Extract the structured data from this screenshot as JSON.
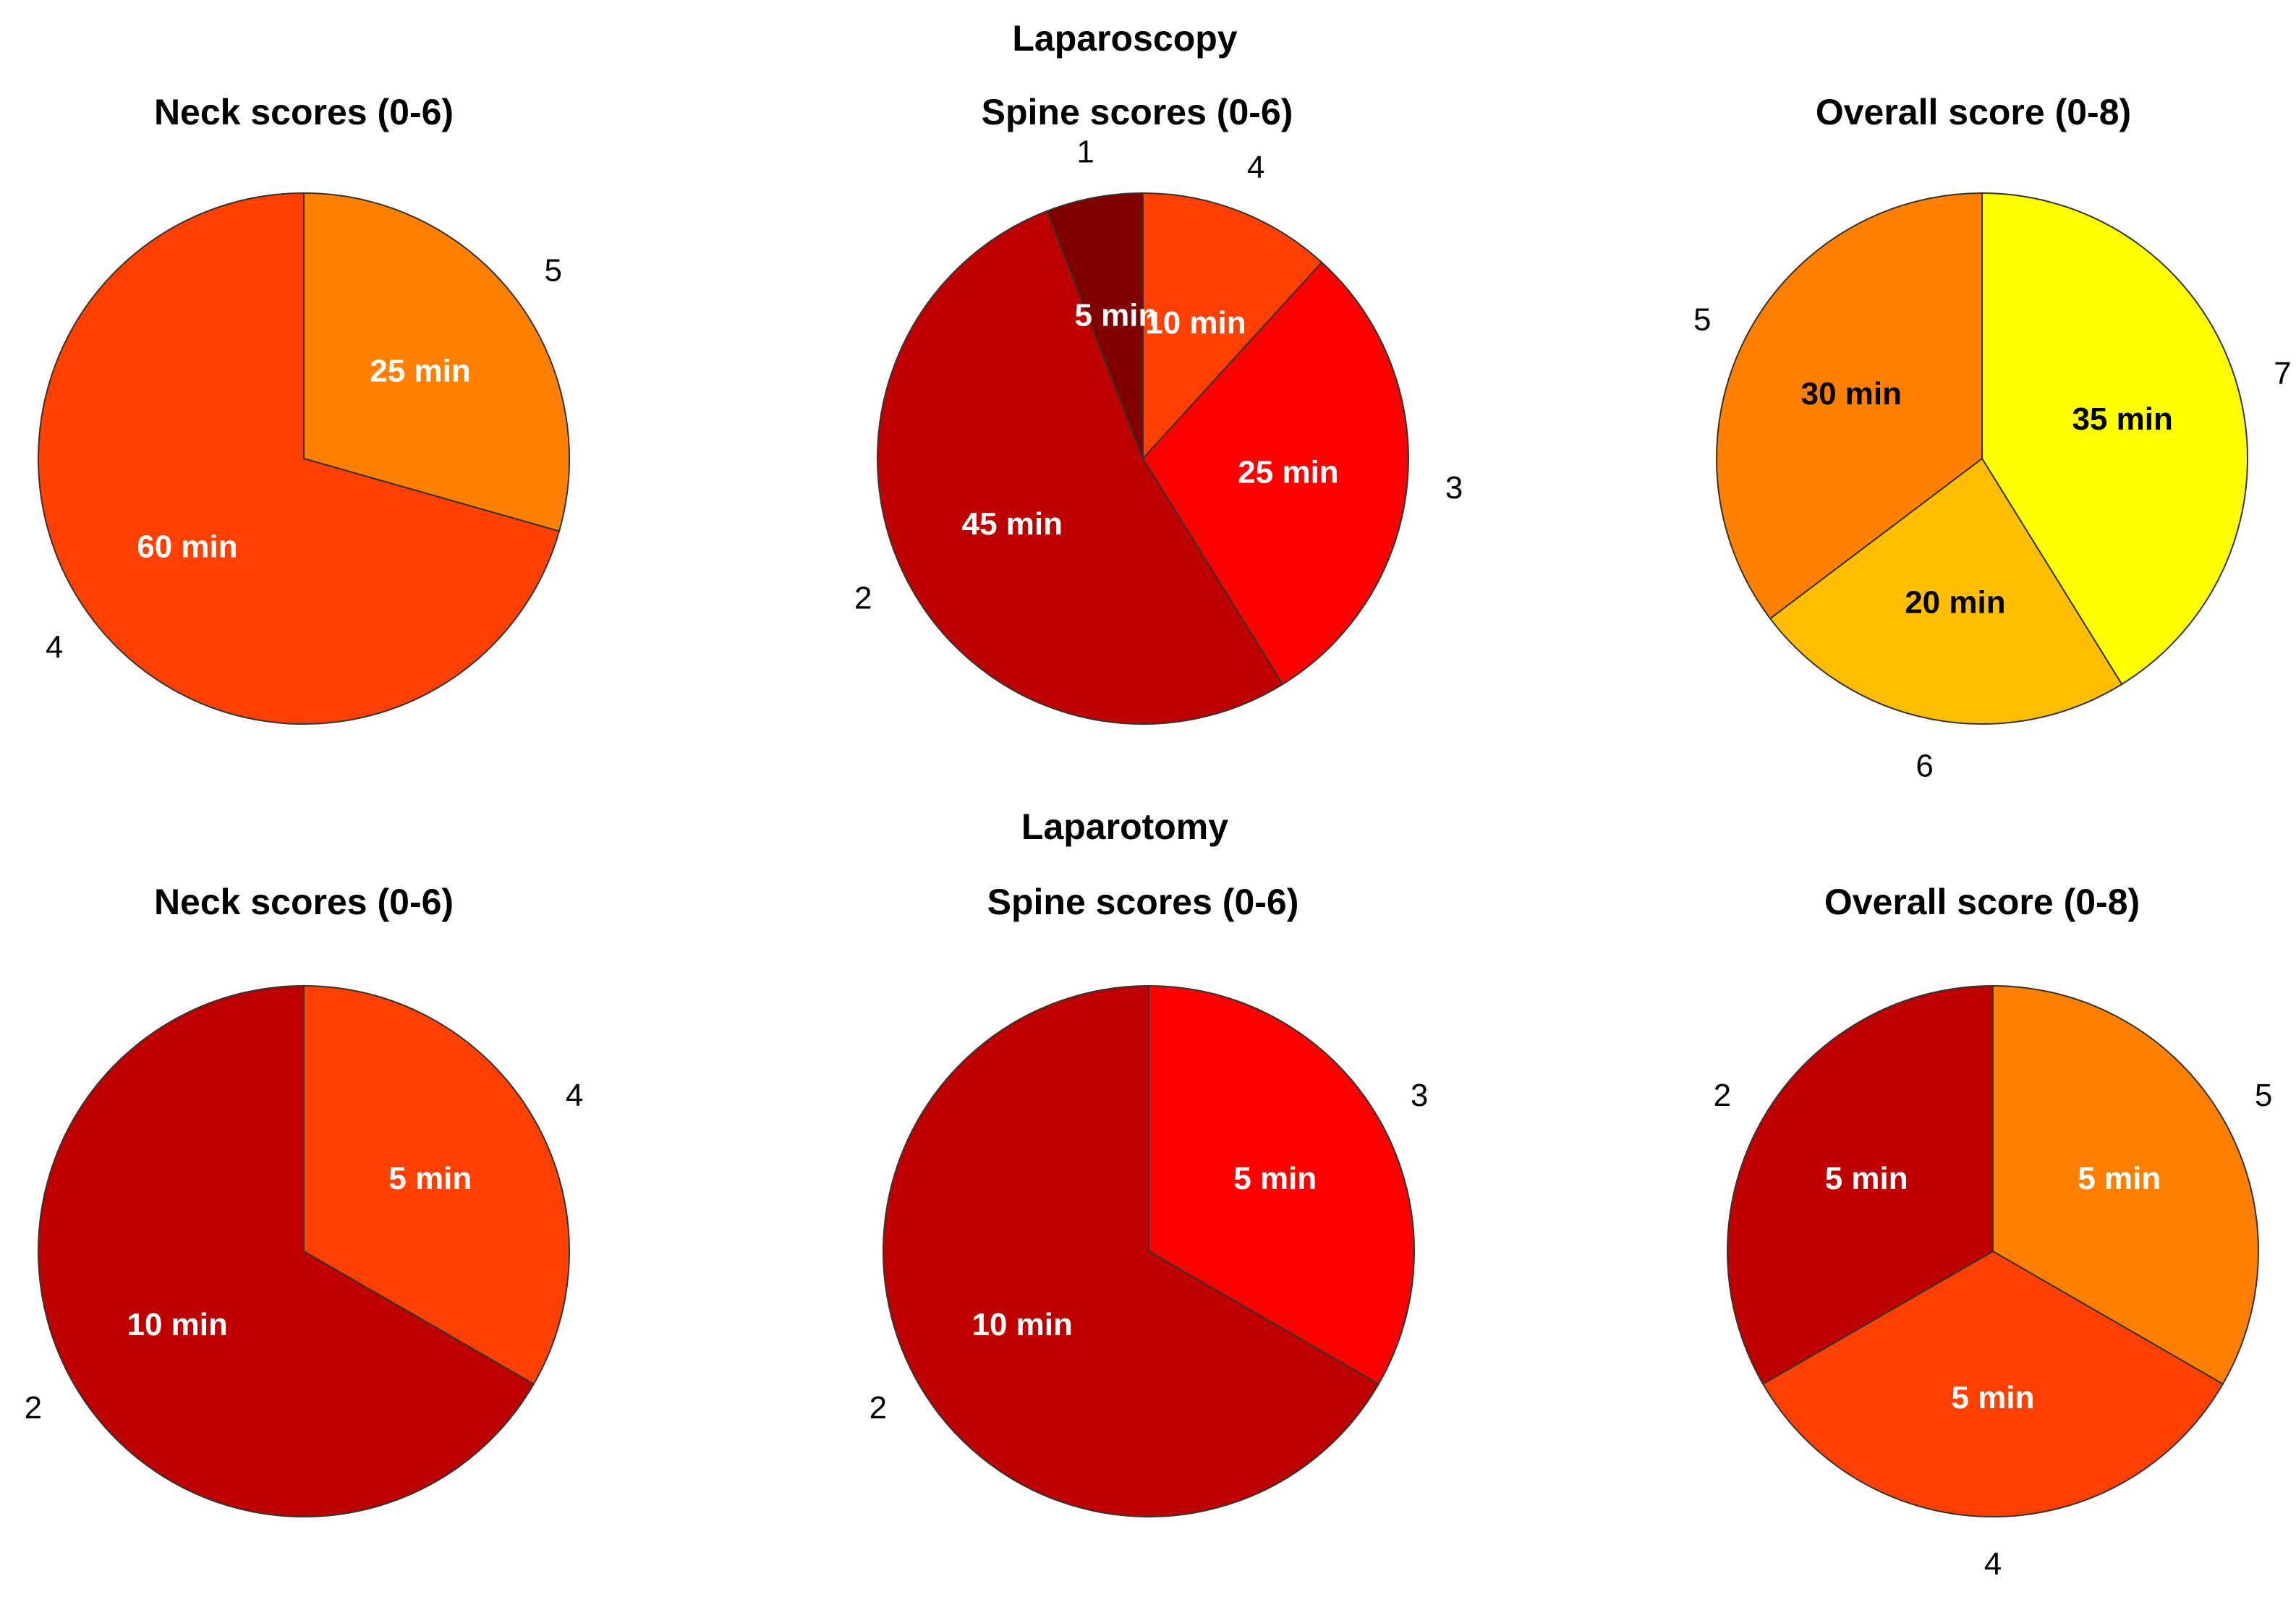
{
  "figure": {
    "groups": [
      {
        "title": "Laparoscopy"
      },
      {
        "title": "Laparotomy"
      }
    ]
  },
  "chart_data": [
    {
      "type": "pie",
      "group": "Laparoscopy",
      "title": "Neck scores (0-6)",
      "slices": [
        {
          "category": "5",
          "minutes": 25,
          "label": "25 min",
          "color": "#FF8000",
          "text_color": "#ffffff"
        },
        {
          "category": "4",
          "minutes": 60,
          "label": "60 min",
          "color": "#FF4000",
          "text_color": "#ffffff"
        }
      ]
    },
    {
      "type": "pie",
      "group": "Laparoscopy",
      "title": "Spine scores (0-6)",
      "slices": [
        {
          "category": "4",
          "minutes": 10,
          "label": "10 min",
          "color": "#FF4000",
          "text_color": "#ffffff"
        },
        {
          "category": "3",
          "minutes": 25,
          "label": "25 min",
          "color": "#FF0000",
          "text_color": "#ffffff"
        },
        {
          "category": "2",
          "minutes": 45,
          "label": "45 min",
          "color": "#BF0000",
          "text_color": "#ffffff"
        },
        {
          "category": "1",
          "minutes": 5,
          "label": "5 min",
          "color": "#800000",
          "text_color": "#ffffff"
        }
      ]
    },
    {
      "type": "pie",
      "group": "Laparoscopy",
      "title": "Overall score (0-8)",
      "slices": [
        {
          "category": "7",
          "minutes": 35,
          "label": "35 min",
          "color": "#FFFF00",
          "text_color": "#000000"
        },
        {
          "category": "6",
          "minutes": 20,
          "label": "20 min",
          "color": "#FFBF00",
          "text_color": "#000000"
        },
        {
          "category": "5",
          "minutes": 30,
          "label": "30 min",
          "color": "#FF8000",
          "text_color": "#000000"
        }
      ]
    },
    {
      "type": "pie",
      "group": "Laparotomy",
      "title": "Neck scores (0-6)",
      "slices": [
        {
          "category": "4",
          "minutes": 5,
          "label": "5 min",
          "color": "#FF4000",
          "text_color": "#ffffff"
        },
        {
          "category": "2",
          "minutes": 10,
          "label": "10 min",
          "color": "#BF0000",
          "text_color": "#ffffff"
        }
      ]
    },
    {
      "type": "pie",
      "group": "Laparotomy",
      "title": "Spine scores (0-6)",
      "slices": [
        {
          "category": "3",
          "minutes": 5,
          "label": "5 min",
          "color": "#FF0000",
          "text_color": "#ffffff"
        },
        {
          "category": "2",
          "minutes": 10,
          "label": "10 min",
          "color": "#BF0000",
          "text_color": "#ffffff"
        }
      ]
    },
    {
      "type": "pie",
      "group": "Laparotomy",
      "title": "Overall score (0-8)",
      "slices": [
        {
          "category": "5",
          "minutes": 5,
          "label": "5 min",
          "color": "#FF8000",
          "text_color": "#ffffff"
        },
        {
          "category": "4",
          "minutes": 5,
          "label": "5 min",
          "color": "#FF4000",
          "text_color": "#ffffff"
        },
        {
          "category": "2",
          "minutes": 5,
          "label": "5 min",
          "color": "#BF0000",
          "text_color": "#ffffff"
        }
      ]
    }
  ]
}
